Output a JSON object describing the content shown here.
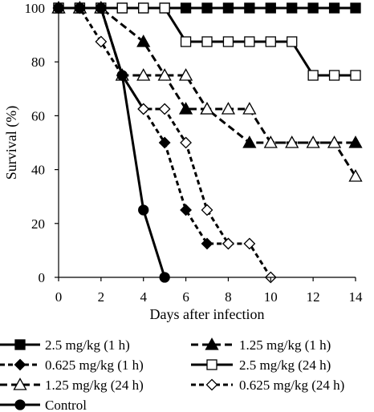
{
  "chart_data": {
    "type": "line",
    "xlabel": "Days after infection",
    "ylabel": "Survival (%)",
    "xlim": [
      0,
      14
    ],
    "ylim": [
      0,
      100
    ],
    "xticks": [
      0,
      2,
      4,
      6,
      8,
      10,
      12,
      14
    ],
    "yticks": [
      0,
      20,
      40,
      60,
      80,
      100
    ],
    "grid": false,
    "legend_position": "bottom",
    "series": [
      {
        "name": "2.5 mg/kg (1 h)",
        "marker": "square-filled",
        "dash": "solid",
        "x": [
          0,
          1,
          2,
          3,
          4,
          5,
          6,
          7,
          8,
          9,
          10,
          11,
          12,
          13,
          14
        ],
        "y": [
          100,
          100,
          100,
          100,
          100,
          100,
          100,
          100,
          100,
          100,
          100,
          100,
          100,
          100,
          100
        ]
      },
      {
        "name": "1.25 mg/kg (1 h)",
        "marker": "triangle-filled",
        "dash": "long",
        "x": [
          0,
          1,
          2,
          4,
          6,
          7,
          9,
          14
        ],
        "y": [
          100,
          100,
          100,
          87.5,
          62.5,
          62.5,
          50,
          50
        ]
      },
      {
        "name": "0.625 mg/kg (1 h)",
        "marker": "diamond-filled",
        "dash": "short",
        "x": [
          0,
          1,
          2,
          3,
          4,
          5,
          6,
          7,
          8
        ],
        "y": [
          100,
          100,
          100,
          75,
          62.5,
          50,
          25,
          12.5,
          12.5
        ]
      },
      {
        "name": "2.5 mg/kg (24 h)",
        "marker": "square-open",
        "dash": "solid",
        "x": [
          0,
          1,
          2,
          3,
          4,
          5,
          6,
          7,
          8,
          9,
          10,
          11,
          12,
          13,
          14
        ],
        "y": [
          100,
          100,
          100,
          100,
          100,
          100,
          87.5,
          87.5,
          87.5,
          87.5,
          87.5,
          87.5,
          75,
          75,
          75
        ]
      },
      {
        "name": "1.25 mg/kg (24 h)",
        "marker": "triangle-open",
        "dash": "long",
        "x": [
          0,
          1,
          2,
          3,
          4,
          5,
          6,
          7,
          8,
          9,
          10,
          11,
          12,
          13,
          14
        ],
        "y": [
          100,
          100,
          100,
          75,
          75,
          75,
          75,
          62.5,
          62.5,
          62.5,
          50,
          50,
          50,
          50,
          37.5
        ]
      },
      {
        "name": "0.625 mg/kg (24 h)",
        "marker": "diamond-open",
        "dash": "short",
        "x": [
          0,
          1,
          2,
          3,
          4,
          5,
          6,
          7,
          8,
          9,
          10
        ],
        "y": [
          100,
          100,
          87.5,
          75,
          62.5,
          62.5,
          50,
          25,
          12.5,
          12.5,
          0
        ]
      },
      {
        "name": "Control",
        "marker": "circle-filled",
        "dash": "solid",
        "x": [
          0,
          1,
          2,
          3,
          4,
          5
        ],
        "y": [
          100,
          100,
          100,
          75,
          25,
          0
        ]
      }
    ]
  }
}
